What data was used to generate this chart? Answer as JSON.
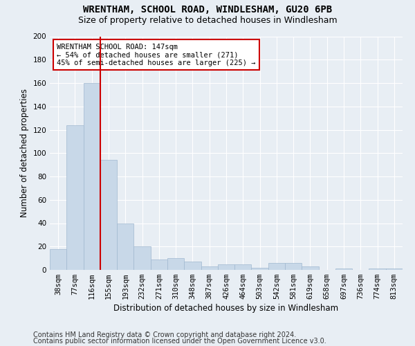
{
  "title1": "WRENTHAM, SCHOOL ROAD, WINDLESHAM, GU20 6PB",
  "title2": "Size of property relative to detached houses in Windlesham",
  "xlabel": "Distribution of detached houses by size in Windlesham",
  "ylabel": "Number of detached properties",
  "footer1": "Contains HM Land Registry data © Crown copyright and database right 2024.",
  "footer2": "Contains public sector information licensed under the Open Government Licence v3.0.",
  "bin_labels": [
    "38sqm",
    "77sqm",
    "116sqm",
    "155sqm",
    "193sqm",
    "232sqm",
    "271sqm",
    "310sqm",
    "348sqm",
    "387sqm",
    "426sqm",
    "464sqm",
    "503sqm",
    "542sqm",
    "581sqm",
    "619sqm",
    "658sqm",
    "697sqm",
    "736sqm",
    "774sqm",
    "813sqm"
  ],
  "bar_values": [
    18,
    124,
    160,
    94,
    40,
    20,
    9,
    10,
    7,
    3,
    5,
    5,
    2,
    6,
    6,
    3,
    0,
    1,
    0,
    1,
    1
  ],
  "bar_color": "#c8d8e8",
  "bar_edgecolor": "#a0b8d0",
  "vline_color": "#cc0000",
  "vline_x": 2.5,
  "annotation_text": "WRENTHAM SCHOOL ROAD: 147sqm\n← 54% of detached houses are smaller (271)\n45% of semi-detached houses are larger (225) →",
  "annotation_box_facecolor": "#ffffff",
  "annotation_box_edgecolor": "#cc0000",
  "ylim": [
    0,
    200
  ],
  "yticks": [
    0,
    20,
    40,
    60,
    80,
    100,
    120,
    140,
    160,
    180,
    200
  ],
  "bg_color": "#e8eef4",
  "plot_bg_color": "#e8eef4",
  "title1_fontsize": 10,
  "title2_fontsize": 9,
  "xlabel_fontsize": 8.5,
  "ylabel_fontsize": 8.5,
  "tick_fontsize": 7.5,
  "annotation_fontsize": 7.5,
  "footer_fontsize": 7
}
